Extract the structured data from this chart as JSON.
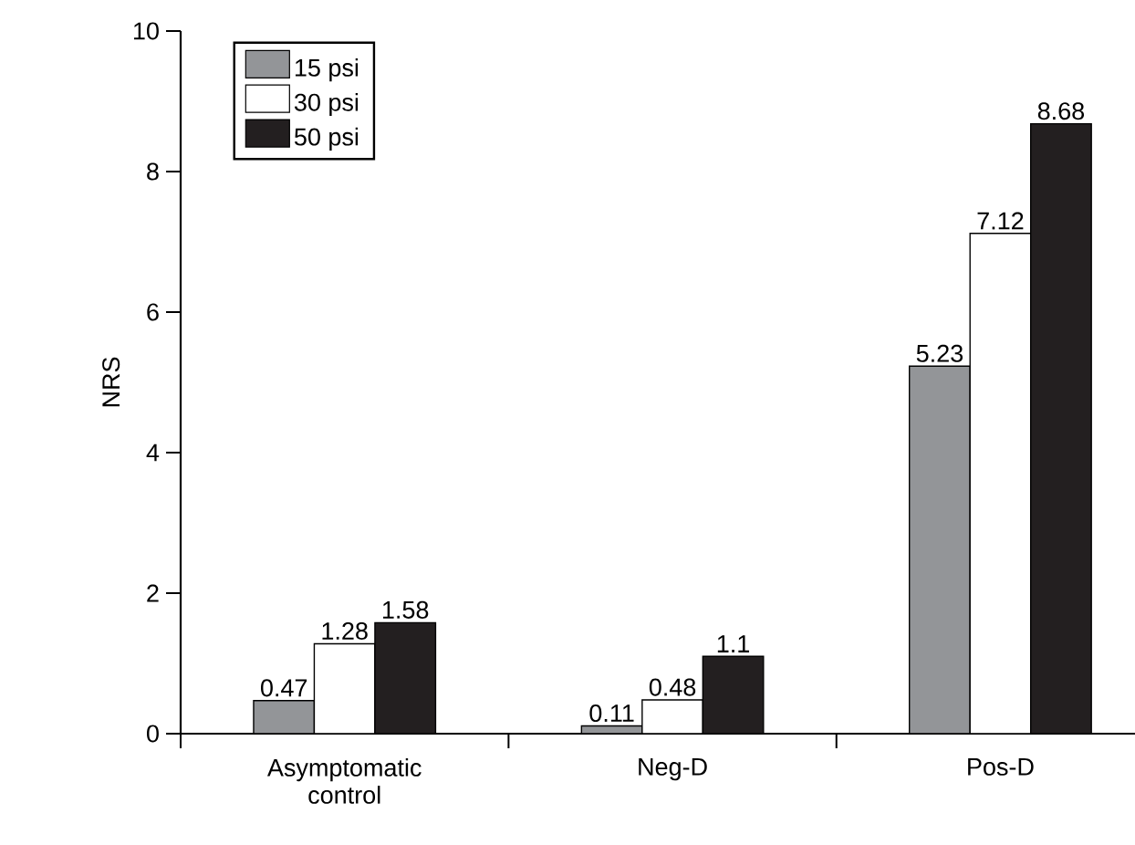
{
  "chart_data": {
    "type": "bar",
    "ylabel": "NRS",
    "categories": [
      "Asymptomatic control",
      "Neg-D",
      "Pos-D"
    ],
    "series": [
      {
        "name": "15 psi",
        "color": "#939598",
        "values": [
          0.47,
          0.11,
          5.23
        ]
      },
      {
        "name": "30 psi",
        "color": "#ffffff",
        "values": [
          1.28,
          0.48,
          7.12
        ]
      },
      {
        "name": "50 psi",
        "color": "#231f20",
        "values": [
          1.58,
          1.1,
          8.68
        ]
      }
    ],
    "ylim": [
      0,
      10
    ],
    "yticks": [
      0,
      2,
      4,
      6,
      8,
      10
    ],
    "data_labels": true,
    "legend": "top left",
    "grid": false
  }
}
